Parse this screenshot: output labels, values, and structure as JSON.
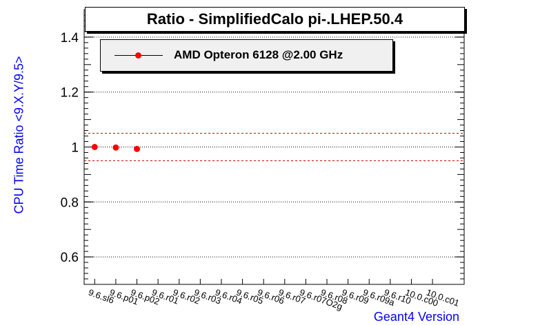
{
  "chart_data": {
    "type": "scatter",
    "title": "Ratio - SimplifiedCalo pi-.LHEP.50.4",
    "xlabel": "Geant4 Version",
    "ylabel": "CPU Time Ratio <9.X.Y/9.5>",
    "categories": [
      "9.6.sl6",
      "9.6.p01",
      "9.6.p02",
      "9.6.r01",
      "9.6.r02",
      "9.6.r03",
      "9.6.r04",
      "9.6.r05",
      "9.6.r06",
      "9.6.r07",
      "9.6.r07O2g",
      "9.6.r08",
      "9.6.r09",
      "9.6.r09a",
      "9.6.r10",
      "10.0.c00",
      "10.0.c01"
    ],
    "series": [
      {
        "name": "AMD Opteron 6128 @2.00 GHz",
        "color": "#ff0000",
        "values": [
          1.0,
          0.998,
          0.993
        ]
      }
    ],
    "ylim": [
      0.5,
      1.5
    ],
    "yticks": [
      0.6,
      0.8,
      1,
      1.2,
      1.4
    ],
    "reference_lines": [
      1.05,
      0.95
    ],
    "grid": "horizontal dotted",
    "legend": "top-left"
  }
}
